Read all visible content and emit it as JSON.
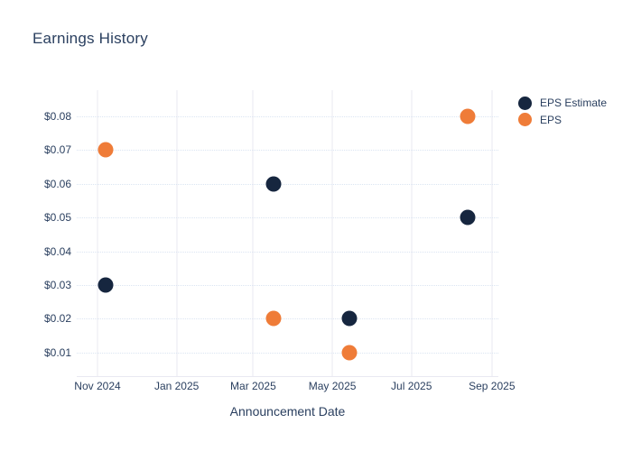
{
  "chart_data": {
    "type": "scatter",
    "title": "Earnings History",
    "xlabel": "Announcement Date",
    "ylabel": "",
    "legend_position": "top-right",
    "grid": {
      "vertical": true,
      "horizontal": true
    },
    "x_axis": {
      "type": "date",
      "range": [
        "2024-10-16",
        "2025-09-06"
      ],
      "ticks": [
        {
          "value": "2024-11-01",
          "label": "Nov 2024"
        },
        {
          "value": "2025-01-01",
          "label": "Jan 2025"
        },
        {
          "value": "2025-03-01",
          "label": "Mar 2025"
        },
        {
          "value": "2025-05-01",
          "label": "May 2025"
        },
        {
          "value": "2025-07-01",
          "label": "Jul 2025"
        },
        {
          "value": "2025-09-01",
          "label": "Sep 2025"
        }
      ]
    },
    "y_axis": {
      "range": [
        0.003,
        0.0877
      ],
      "ticks": [
        {
          "value": 0.01,
          "label": "$0.01"
        },
        {
          "value": 0.02,
          "label": "$0.02"
        },
        {
          "value": 0.03,
          "label": "$0.03"
        },
        {
          "value": 0.04,
          "label": "$0.04"
        },
        {
          "value": 0.05,
          "label": "$0.05"
        },
        {
          "value": 0.06,
          "label": "$0.06"
        },
        {
          "value": 0.07,
          "label": "$0.07"
        },
        {
          "value": 0.08,
          "label": "$0.08"
        }
      ]
    },
    "series": [
      {
        "name": "EPS Estimate",
        "color": "#16263f",
        "points": [
          {
            "x": "2024-11-07",
            "y": 0.03
          },
          {
            "x": "2025-03-17",
            "y": 0.06
          },
          {
            "x": "2025-05-14",
            "y": 0.02
          },
          {
            "x": "2025-08-13",
            "y": 0.05
          }
        ]
      },
      {
        "name": "EPS",
        "color": "#ef7c38",
        "points": [
          {
            "x": "2024-11-07",
            "y": 0.07
          },
          {
            "x": "2025-03-17",
            "y": 0.02
          },
          {
            "x": "2025-05-14",
            "y": 0.01
          },
          {
            "x": "2025-08-13",
            "y": 0.08
          }
        ]
      }
    ]
  },
  "colors": {
    "background": "#ffffff",
    "text": "#2a3f5f",
    "gridline_vertical": "#e9e9f2",
    "gridline_horizontal": "#dbe5f2",
    "axis_line": "#e9e9f1"
  }
}
